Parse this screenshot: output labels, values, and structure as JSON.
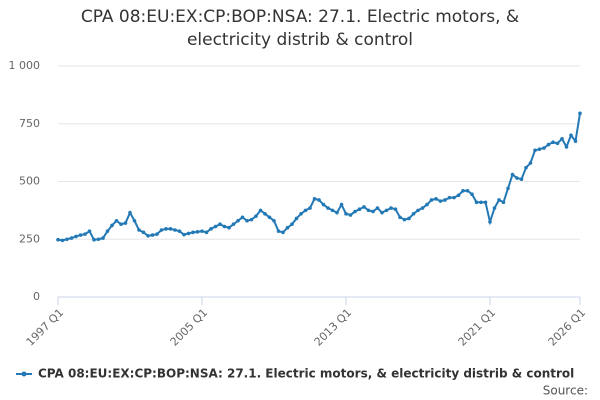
{
  "chart_data": {
    "type": "line",
    "title": "CPA 08:EU:EX:CP:BOP:NSA: 27.1. Electric motors, & electricity distrib & control",
    "source": "Source:",
    "categories": [
      "1997 Q1",
      null,
      null,
      null,
      null,
      null,
      null,
      null,
      null,
      null,
      null,
      null,
      null,
      null,
      null,
      null,
      null,
      null,
      null,
      null,
      null,
      null,
      null,
      null,
      null,
      null,
      null,
      null,
      null,
      null,
      null,
      null,
      "2005 Q1",
      null,
      null,
      null,
      null,
      null,
      null,
      null,
      null,
      null,
      null,
      null,
      null,
      null,
      null,
      null,
      null,
      null,
      null,
      null,
      null,
      null,
      null,
      null,
      null,
      null,
      null,
      null,
      null,
      null,
      null,
      null,
      "2013 Q1",
      null,
      null,
      null,
      null,
      null,
      null,
      null,
      null,
      null,
      null,
      null,
      null,
      null,
      null,
      null,
      null,
      null,
      null,
      null,
      null,
      null,
      null,
      null,
      null,
      null,
      null,
      null,
      null,
      null,
      null,
      null,
      "2021 Q1",
      null,
      null,
      null,
      null,
      null,
      null,
      null,
      null,
      null,
      null,
      null,
      null,
      null,
      null,
      null,
      null,
      null,
      null,
      null,
      "2026 Q1"
    ],
    "series": [
      {
        "name": "CPA 08:EU:EX:CP:BOP:NSA: 27.1. Electric motors, & electricity distrib & control",
        "color": "#2379b5",
        "values": [
          248,
          245,
          250,
          255,
          262,
          268,
          272,
          285,
          248,
          250,
          255,
          285,
          310,
          330,
          315,
          320,
          365,
          330,
          290,
          280,
          265,
          268,
          272,
          290,
          295,
          295,
          290,
          285,
          270,
          275,
          280,
          282,
          285,
          280,
          295,
          305,
          315,
          305,
          300,
          315,
          330,
          345,
          330,
          335,
          350,
          375,
          360,
          345,
          330,
          285,
          280,
          300,
          315,
          340,
          360,
          375,
          385,
          425,
          420,
          400,
          385,
          375,
          365,
          400,
          360,
          355,
          370,
          380,
          390,
          375,
          370,
          385,
          365,
          375,
          385,
          380,
          345,
          335,
          340,
          360,
          375,
          385,
          400,
          420,
          425,
          415,
          420,
          430,
          430,
          440,
          460,
          460,
          445,
          410,
          410,
          410,
          325,
          385,
          420,
          410,
          470,
          530,
          515,
          510,
          560,
          580,
          635,
          640,
          645,
          660,
          670,
          665,
          685,
          650,
          700,
          675,
          795
        ]
      }
    ],
    "ylim": [
      0,
      1000
    ],
    "yticks": [
      0,
      250,
      500,
      750,
      {
        "value": 1000,
        "label": "1 000"
      }
    ],
    "grid": true,
    "legend": "bottom"
  }
}
